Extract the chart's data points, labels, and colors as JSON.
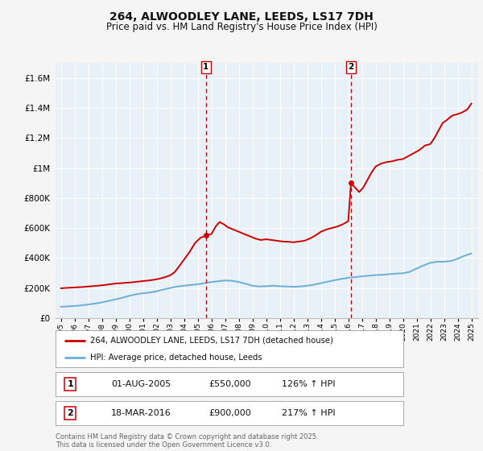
{
  "title": "264, ALWOODLEY LANE, LEEDS, LS17 7DH",
  "subtitle": "Price paid vs. HM Land Registry's House Price Index (HPI)",
  "ylim": [
    0,
    1700000
  ],
  "yticks": [
    0,
    200000,
    400000,
    600000,
    800000,
    1000000,
    1200000,
    1400000,
    1600000
  ],
  "ytick_labels": [
    "£0",
    "£200K",
    "£400K",
    "£600K",
    "£800K",
    "£1M",
    "£1.2M",
    "£1.4M",
    "£1.6M"
  ],
  "background_color": "#f5f5f5",
  "plot_bg_color": "#e8f0f8",
  "grid_color": "#ffffff",
  "title_fontsize": 10,
  "subtitle_fontsize": 8.5,
  "annotation1": {
    "label": "1",
    "date_str": "01-AUG-2005",
    "price": 550000,
    "hpi_pct": "126%",
    "x_year": 2005.6
  },
  "annotation2": {
    "label": "2",
    "date_str": "18-MAR-2016",
    "price": 900000,
    "hpi_pct": "217%",
    "x_year": 2016.2
  },
  "legend_line1": "264, ALWOODLEY LANE, LEEDS, LS17 7DH (detached house)",
  "legend_line2": "HPI: Average price, detached house, Leeds",
  "footnote": "Contains HM Land Registry data © Crown copyright and database right 2025.\nThis data is licensed under the Open Government Licence v3.0.",
  "hpi_color": "#6baed6",
  "price_color": "#cc0000",
  "dashed_color": "#cc0000",
  "hpi_x": [
    1995.0,
    1995.5,
    1996.0,
    1996.5,
    1997.0,
    1997.5,
    1998.0,
    1998.5,
    1999.0,
    1999.5,
    2000.0,
    2000.5,
    2001.0,
    2001.5,
    2002.0,
    2002.5,
    2003.0,
    2003.5,
    2004.0,
    2004.5,
    2005.0,
    2005.5,
    2006.0,
    2006.5,
    2007.0,
    2007.5,
    2008.0,
    2008.5,
    2009.0,
    2009.5,
    2010.0,
    2010.5,
    2011.0,
    2011.5,
    2012.0,
    2012.5,
    2013.0,
    2013.5,
    2014.0,
    2014.5,
    2015.0,
    2015.5,
    2016.0,
    2016.5,
    2017.0,
    2017.5,
    2018.0,
    2018.5,
    2019.0,
    2019.5,
    2020.0,
    2020.5,
    2021.0,
    2021.5,
    2022.0,
    2022.5,
    2023.0,
    2023.5,
    2024.0,
    2024.5,
    2025.0
  ],
  "hpi_y": [
    75000,
    77000,
    80000,
    84000,
    90000,
    96000,
    104000,
    114000,
    124000,
    135000,
    148000,
    158000,
    165000,
    170000,
    178000,
    190000,
    200000,
    210000,
    215000,
    220000,
    225000,
    232000,
    240000,
    245000,
    250000,
    248000,
    240000,
    228000,
    215000,
    210000,
    212000,
    215000,
    212000,
    210000,
    208000,
    210000,
    215000,
    222000,
    232000,
    242000,
    252000,
    260000,
    268000,
    272000,
    278000,
    282000,
    286000,
    288000,
    292000,
    296000,
    298000,
    308000,
    330000,
    350000,
    368000,
    375000,
    375000,
    380000,
    395000,
    415000,
    430000
  ],
  "price_x": [
    1995.0,
    1995.3,
    1995.7,
    1996.1,
    1996.5,
    1997.0,
    1997.4,
    1997.8,
    1998.2,
    1998.6,
    1999.0,
    1999.4,
    1999.8,
    2000.2,
    2000.6,
    2001.0,
    2001.4,
    2001.8,
    2002.2,
    2002.6,
    2003.0,
    2003.3,
    2003.6,
    2004.0,
    2004.4,
    2004.8,
    2005.2,
    2005.6,
    2006.0,
    2006.3,
    2006.6,
    2006.9,
    2007.2,
    2007.6,
    2008.0,
    2008.4,
    2008.8,
    2009.2,
    2009.6,
    2010.0,
    2010.4,
    2010.8,
    2011.2,
    2011.6,
    2012.0,
    2012.4,
    2012.8,
    2013.2,
    2013.6,
    2014.0,
    2014.4,
    2014.8,
    2015.2,
    2015.6,
    2016.0,
    2016.2,
    2016.5,
    2016.8,
    2017.1,
    2017.4,
    2017.7,
    2018.0,
    2018.4,
    2018.8,
    2019.2,
    2019.6,
    2020.0,
    2020.4,
    2020.8,
    2021.2,
    2021.6,
    2022.0,
    2022.3,
    2022.6,
    2022.9,
    2023.2,
    2023.6,
    2024.0,
    2024.3,
    2024.7,
    2025.0
  ],
  "price_y": [
    198000,
    200000,
    202000,
    204000,
    206000,
    210000,
    213000,
    216000,
    220000,
    225000,
    230000,
    232000,
    235000,
    238000,
    242000,
    246000,
    250000,
    255000,
    262000,
    272000,
    285000,
    305000,
    340000,
    390000,
    440000,
    500000,
    535000,
    550000,
    560000,
    610000,
    640000,
    625000,
    605000,
    590000,
    575000,
    560000,
    545000,
    530000,
    520000,
    525000,
    520000,
    515000,
    510000,
    508000,
    505000,
    510000,
    515000,
    530000,
    550000,
    575000,
    590000,
    600000,
    610000,
    625000,
    645000,
    900000,
    870000,
    840000,
    870000,
    920000,
    970000,
    1010000,
    1030000,
    1040000,
    1045000,
    1055000,
    1060000,
    1080000,
    1100000,
    1120000,
    1150000,
    1160000,
    1200000,
    1250000,
    1300000,
    1320000,
    1350000,
    1360000,
    1370000,
    1390000,
    1430000
  ],
  "xtick_years": [
    1995,
    1996,
    1997,
    1998,
    1999,
    2000,
    2001,
    2002,
    2003,
    2004,
    2005,
    2006,
    2007,
    2008,
    2009,
    2010,
    2011,
    2012,
    2013,
    2014,
    2015,
    2016,
    2017,
    2018,
    2019,
    2020,
    2021,
    2022,
    2023,
    2024,
    2025
  ]
}
